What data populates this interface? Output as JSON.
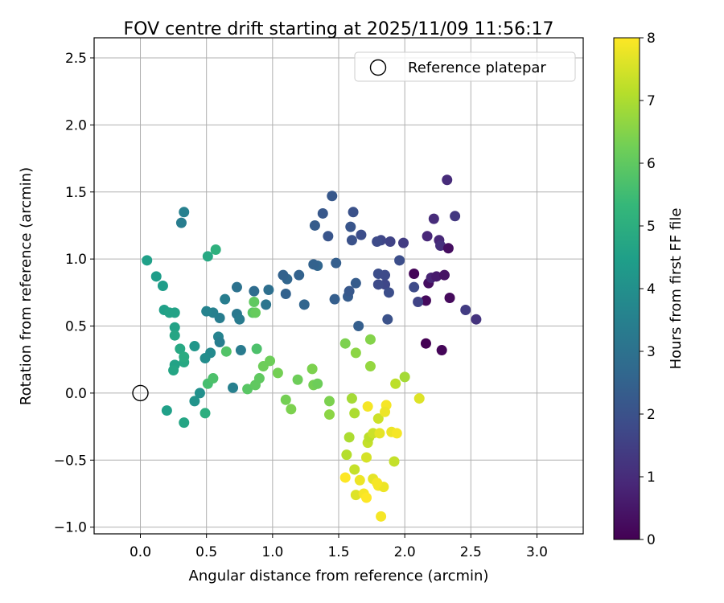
{
  "chart_data": {
    "type": "scatter",
    "title": "FOV centre drift starting at 2025/11/09 11:56:17",
    "xlabel": "Angular distance from reference (arcmin)",
    "ylabel": "Rotation from reference (arcmin)",
    "xlim": [
      -0.35,
      3.35
    ],
    "ylim": [
      -1.05,
      2.65
    ],
    "xticks": [
      0.0,
      0.5,
      1.0,
      1.5,
      2.0,
      2.5,
      3.0
    ],
    "xtick_labels": [
      "0.0",
      "0.5",
      "1.0",
      "1.5",
      "2.0",
      "2.5",
      "3.0"
    ],
    "yticks": [
      -1.0,
      -0.5,
      0.0,
      0.5,
      1.0,
      1.5,
      2.0,
      2.5
    ],
    "ytick_labels": [
      "−1.0",
      "−0.5",
      "0.0",
      "0.5",
      "1.0",
      "1.5",
      "2.0",
      "2.5"
    ],
    "grid": true,
    "legend": {
      "placement": "top-right",
      "entries": [
        "Reference platepar"
      ]
    },
    "reference_point": {
      "x": 0.0,
      "y": 0.0
    },
    "colorbar": {
      "label": "Hours from first FF file",
      "range": [
        0,
        8
      ],
      "ticks": [
        0,
        1,
        2,
        3,
        4,
        5,
        6,
        7,
        8
      ],
      "colormap": "viridis",
      "stops": [
        "#440154",
        "#482878",
        "#3e4a89",
        "#31688e",
        "#26828e",
        "#1f9e89",
        "#35b779",
        "#6ece58",
        "#b5de2b",
        "#fde725"
      ]
    },
    "points": [
      {
        "x": 2.07,
        "y": 0.89,
        "t": 0.1
      },
      {
        "x": 2.16,
        "y": 0.69,
        "t": 0.2
      },
      {
        "x": 2.17,
        "y": 1.17,
        "t": 0.9
      },
      {
        "x": 2.18,
        "y": 0.82,
        "t": 0.3
      },
      {
        "x": 2.2,
        "y": 0.86,
        "t": 0.8
      },
      {
        "x": 2.22,
        "y": 1.3,
        "t": 1.0
      },
      {
        "x": 2.24,
        "y": 0.87,
        "t": 0.6
      },
      {
        "x": 2.26,
        "y": 1.14,
        "t": 0.9
      },
      {
        "x": 2.27,
        "y": 1.1,
        "t": 1.1
      },
      {
        "x": 2.3,
        "y": 0.88,
        "t": 0.4
      },
      {
        "x": 2.32,
        "y": 1.59,
        "t": 1.0
      },
      {
        "x": 2.33,
        "y": 1.08,
        "t": 0.3
      },
      {
        "x": 2.34,
        "y": 0.71,
        "t": 0.2
      },
      {
        "x": 2.38,
        "y": 1.32,
        "t": 1.3
      },
      {
        "x": 2.46,
        "y": 0.62,
        "t": 1.4
      },
      {
        "x": 2.54,
        "y": 0.55,
        "t": 1.2
      },
      {
        "x": 2.16,
        "y": 0.37,
        "t": 0.0
      },
      {
        "x": 2.28,
        "y": 0.32,
        "t": 0.1
      },
      {
        "x": 2.1,
        "y": 0.68,
        "t": 1.6
      },
      {
        "x": 2.07,
        "y": 0.79,
        "t": 1.8
      },
      {
        "x": 1.99,
        "y": 1.12,
        "t": 1.4
      },
      {
        "x": 1.96,
        "y": 0.99,
        "t": 1.9
      },
      {
        "x": 1.89,
        "y": 1.13,
        "t": 1.6
      },
      {
        "x": 1.82,
        "y": 1.14,
        "t": 1.7
      },
      {
        "x": 1.79,
        "y": 1.13,
        "t": 1.8
      },
      {
        "x": 1.8,
        "y": 0.89,
        "t": 1.9
      },
      {
        "x": 1.85,
        "y": 0.88,
        "t": 1.8
      },
      {
        "x": 1.85,
        "y": 0.81,
        "t": 1.7
      },
      {
        "x": 1.88,
        "y": 0.75,
        "t": 1.9
      },
      {
        "x": 1.8,
        "y": 0.81,
        "t": 1.8
      },
      {
        "x": 1.87,
        "y": 0.55,
        "t": 2.0
      },
      {
        "x": 1.67,
        "y": 1.18,
        "t": 1.9
      },
      {
        "x": 1.6,
        "y": 1.14,
        "t": 2.0
      },
      {
        "x": 1.59,
        "y": 1.24,
        "t": 2.1
      },
      {
        "x": 1.61,
        "y": 1.35,
        "t": 2.0
      },
      {
        "x": 1.45,
        "y": 1.47,
        "t": 2.2
      },
      {
        "x": 1.38,
        "y": 1.34,
        "t": 2.2
      },
      {
        "x": 1.32,
        "y": 1.25,
        "t": 2.3
      },
      {
        "x": 1.42,
        "y": 1.17,
        "t": 2.1
      },
      {
        "x": 1.48,
        "y": 0.97,
        "t": 2.4
      },
      {
        "x": 1.34,
        "y": 0.95,
        "t": 2.6
      },
      {
        "x": 1.31,
        "y": 0.96,
        "t": 2.5
      },
      {
        "x": 1.2,
        "y": 0.88,
        "t": 2.5
      },
      {
        "x": 1.11,
        "y": 0.85,
        "t": 2.6
      },
      {
        "x": 1.08,
        "y": 0.88,
        "t": 2.5
      },
      {
        "x": 1.1,
        "y": 0.74,
        "t": 2.5
      },
      {
        "x": 1.24,
        "y": 0.66,
        "t": 2.6
      },
      {
        "x": 1.47,
        "y": 0.7,
        "t": 2.4
      },
      {
        "x": 1.57,
        "y": 0.72,
        "t": 2.3
      },
      {
        "x": 1.58,
        "y": 0.76,
        "t": 2.2
      },
      {
        "x": 1.63,
        "y": 0.82,
        "t": 2.3
      },
      {
        "x": 1.65,
        "y": 0.5,
        "t": 2.4
      },
      {
        "x": 0.97,
        "y": 0.77,
        "t": 2.9
      },
      {
        "x": 0.86,
        "y": 0.76,
        "t": 2.8
      },
      {
        "x": 0.73,
        "y": 0.79,
        "t": 3.0
      },
      {
        "x": 0.95,
        "y": 0.66,
        "t": 3.1
      },
      {
        "x": 0.73,
        "y": 0.59,
        "t": 3.2
      },
      {
        "x": 0.75,
        "y": 0.55,
        "t": 3.3
      },
      {
        "x": 0.64,
        "y": 0.7,
        "t": 3.4
      },
      {
        "x": 0.6,
        "y": 0.56,
        "t": 3.4
      },
      {
        "x": 0.55,
        "y": 0.6,
        "t": 3.5
      },
      {
        "x": 0.5,
        "y": 0.61,
        "t": 3.6
      },
      {
        "x": 0.59,
        "y": 0.42,
        "t": 3.6
      },
      {
        "x": 0.6,
        "y": 0.38,
        "t": 3.4
      },
      {
        "x": 0.76,
        "y": 0.32,
        "t": 3.3
      },
      {
        "x": 0.7,
        "y": 0.04,
        "t": 3.5
      },
      {
        "x": 0.53,
        "y": 0.3,
        "t": 3.8
      },
      {
        "x": 0.49,
        "y": 0.26,
        "t": 3.9
      },
      {
        "x": 0.45,
        "y": 0.0,
        "t": 4.0
      },
      {
        "x": 0.41,
        "y": -0.06,
        "t": 4.1
      },
      {
        "x": 0.41,
        "y": 0.35,
        "t": 4.2
      },
      {
        "x": 0.33,
        "y": 1.35,
        "t": 3.5
      },
      {
        "x": 0.31,
        "y": 1.27,
        "t": 3.4
      },
      {
        "x": 0.05,
        "y": 0.99,
        "t": 4.5
      },
      {
        "x": 0.12,
        "y": 0.87,
        "t": 4.4
      },
      {
        "x": 0.17,
        "y": 0.8,
        "t": 4.4
      },
      {
        "x": 0.18,
        "y": 0.62,
        "t": 4.5
      },
      {
        "x": 0.22,
        "y": 0.6,
        "t": 4.6
      },
      {
        "x": 0.26,
        "y": 0.6,
        "t": 4.6
      },
      {
        "x": 0.26,
        "y": 0.49,
        "t": 4.6
      },
      {
        "x": 0.26,
        "y": 0.43,
        "t": 4.7
      },
      {
        "x": 0.3,
        "y": 0.33,
        "t": 4.8
      },
      {
        "x": 0.33,
        "y": 0.23,
        "t": 4.8
      },
      {
        "x": 0.33,
        "y": 0.27,
        "t": 4.9
      },
      {
        "x": 0.26,
        "y": 0.21,
        "t": 4.6
      },
      {
        "x": 0.25,
        "y": 0.17,
        "t": 4.7
      },
      {
        "x": 0.2,
        "y": -0.13,
        "t": 4.5
      },
      {
        "x": 0.33,
        "y": -0.22,
        "t": 4.7
      },
      {
        "x": 0.49,
        "y": -0.15,
        "t": 5.0
      },
      {
        "x": 0.51,
        "y": 1.02,
        "t": 4.8
      },
      {
        "x": 0.57,
        "y": 1.07,
        "t": 5.1
      },
      {
        "x": 0.51,
        "y": 0.07,
        "t": 5.6
      },
      {
        "x": 0.55,
        "y": 0.11,
        "t": 5.7
      },
      {
        "x": 0.65,
        "y": 0.31,
        "t": 5.8
      },
      {
        "x": 0.81,
        "y": 0.03,
        "t": 5.9
      },
      {
        "x": 0.87,
        "y": 0.06,
        "t": 6.0
      },
      {
        "x": 0.9,
        "y": 0.11,
        "t": 6.0
      },
      {
        "x": 0.88,
        "y": 0.33,
        "t": 5.7
      },
      {
        "x": 0.85,
        "y": 0.6,
        "t": 5.9
      },
      {
        "x": 0.86,
        "y": 0.68,
        "t": 6.0
      },
      {
        "x": 0.87,
        "y": 0.6,
        "t": 6.1
      },
      {
        "x": 0.93,
        "y": 0.2,
        "t": 6.2
      },
      {
        "x": 0.98,
        "y": 0.24,
        "t": 6.2
      },
      {
        "x": 1.04,
        "y": 0.15,
        "t": 6.3
      },
      {
        "x": 1.1,
        "y": -0.05,
        "t": 6.3
      },
      {
        "x": 1.14,
        "y": -0.12,
        "t": 6.4
      },
      {
        "x": 1.19,
        "y": 0.1,
        "t": 6.2
      },
      {
        "x": 1.31,
        "y": 0.06,
        "t": 6.3
      },
      {
        "x": 1.3,
        "y": 0.18,
        "t": 6.4
      },
      {
        "x": 1.34,
        "y": 0.07,
        "t": 6.2
      },
      {
        "x": 1.43,
        "y": -0.06,
        "t": 6.4
      },
      {
        "x": 1.43,
        "y": -0.16,
        "t": 6.6
      },
      {
        "x": 1.55,
        "y": 0.37,
        "t": 6.4
      },
      {
        "x": 1.63,
        "y": 0.3,
        "t": 6.6
      },
      {
        "x": 1.74,
        "y": 0.4,
        "t": 6.5
      },
      {
        "x": 1.74,
        "y": 0.2,
        "t": 6.7
      },
      {
        "x": 1.6,
        "y": -0.04,
        "t": 6.9
      },
      {
        "x": 1.62,
        "y": -0.15,
        "t": 7.0
      },
      {
        "x": 1.58,
        "y": -0.33,
        "t": 7.0
      },
      {
        "x": 1.56,
        "y": -0.46,
        "t": 7.1
      },
      {
        "x": 1.62,
        "y": -0.57,
        "t": 7.3
      },
      {
        "x": 1.72,
        "y": -0.37,
        "t": 7.3
      },
      {
        "x": 1.73,
        "y": -0.33,
        "t": 7.2
      },
      {
        "x": 1.76,
        "y": -0.3,
        "t": 7.4
      },
      {
        "x": 1.8,
        "y": -0.19,
        "t": 7.4
      },
      {
        "x": 1.71,
        "y": -0.48,
        "t": 7.5
      },
      {
        "x": 1.76,
        "y": -0.64,
        "t": 7.7
      },
      {
        "x": 1.8,
        "y": -0.69,
        "t": 7.9
      },
      {
        "x": 1.84,
        "y": -0.7,
        "t": 7.8
      },
      {
        "x": 1.79,
        "y": -0.67,
        "t": 7.9
      },
      {
        "x": 1.66,
        "y": -0.65,
        "t": 7.8
      },
      {
        "x": 1.63,
        "y": -0.76,
        "t": 7.6
      },
      {
        "x": 1.69,
        "y": -0.75,
        "t": 7.9
      },
      {
        "x": 1.71,
        "y": -0.78,
        "t": 8.0
      },
      {
        "x": 1.82,
        "y": -0.92,
        "t": 7.9
      },
      {
        "x": 1.55,
        "y": -0.63,
        "t": 8.0
      },
      {
        "x": 1.72,
        "y": -0.1,
        "t": 7.9
      },
      {
        "x": 1.86,
        "y": -0.09,
        "t": 7.9
      },
      {
        "x": 1.85,
        "y": -0.14,
        "t": 7.8
      },
      {
        "x": 1.9,
        "y": -0.29,
        "t": 7.8
      },
      {
        "x": 1.94,
        "y": -0.3,
        "t": 7.9
      },
      {
        "x": 1.92,
        "y": -0.51,
        "t": 7.3
      },
      {
        "x": 1.93,
        "y": 0.07,
        "t": 7.2
      },
      {
        "x": 2.0,
        "y": 0.12,
        "t": 6.9
      },
      {
        "x": 2.11,
        "y": -0.04,
        "t": 7.6
      },
      {
        "x": 1.81,
        "y": -0.3,
        "t": 7.7
      }
    ]
  }
}
